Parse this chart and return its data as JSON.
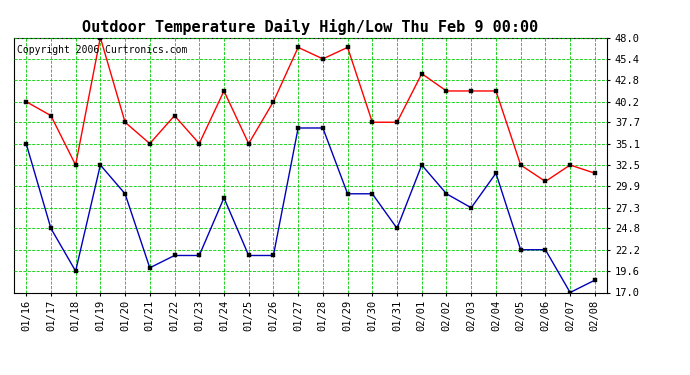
{
  "title": "Outdoor Temperature Daily High/Low Thu Feb 9 00:00",
  "copyright": "Copyright 2006 Curtronics.com",
  "x_labels": [
    "01/16",
    "01/17",
    "01/18",
    "01/19",
    "01/20",
    "01/21",
    "01/22",
    "01/23",
    "01/24",
    "01/25",
    "01/26",
    "01/27",
    "01/28",
    "01/29",
    "01/30",
    "01/31",
    "02/01",
    "02/02",
    "02/03",
    "02/04",
    "02/05",
    "02/06",
    "02/07",
    "02/08"
  ],
  "high_temps": [
    40.2,
    38.5,
    32.5,
    48.0,
    37.7,
    35.1,
    38.5,
    35.1,
    41.5,
    35.1,
    40.2,
    46.8,
    45.4,
    46.8,
    37.7,
    37.7,
    43.6,
    41.5,
    41.5,
    41.5,
    32.5,
    30.5,
    32.5,
    31.5
  ],
  "low_temps": [
    35.1,
    24.8,
    19.6,
    32.5,
    29.0,
    20.0,
    21.5,
    21.5,
    28.5,
    21.5,
    21.5,
    37.0,
    37.0,
    29.0,
    29.0,
    24.8,
    32.5,
    29.0,
    27.3,
    31.5,
    22.2,
    22.2,
    17.0,
    18.5
  ],
  "ylim_min": 17.0,
  "ylim_max": 48.0,
  "yticks": [
    17.0,
    19.6,
    22.2,
    24.8,
    27.3,
    29.9,
    32.5,
    35.1,
    37.7,
    40.2,
    42.8,
    45.4,
    48.0
  ],
  "high_color": "#ff0000",
  "low_color": "#0000bb",
  "bg_color": "#ffffff",
  "grid_color": "#00cc00",
  "title_fontsize": 11,
  "tick_fontsize": 7.5,
  "copyright_fontsize": 7
}
